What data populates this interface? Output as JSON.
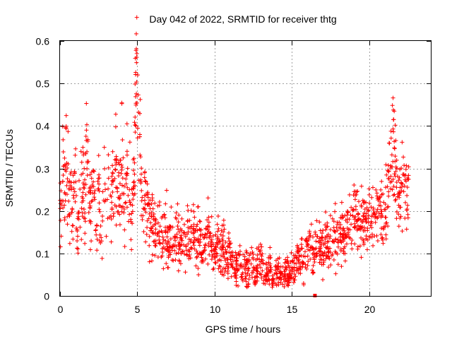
{
  "chart_data": {
    "type": "scatter",
    "title": "Day 042 of 2022, SRMTID for receiver thtg",
    "xlabel": "GPS time / hours",
    "ylabel": "SRMTID / TECUs",
    "xlim": [
      0,
      24
    ],
    "ylim": [
      0,
      0.6
    ],
    "xticks": [
      0,
      5,
      10,
      15,
      20
    ],
    "yticks": [
      0,
      0.1,
      0.2,
      0.3,
      0.4,
      0.5,
      0.6
    ],
    "xtick_labels": [
      "0",
      "5",
      "10",
      "15",
      "20"
    ],
    "ytick_labels": [
      "0",
      "0.1",
      "0.2",
      "0.3",
      "0.4",
      "0.5",
      "0.6"
    ],
    "grid": true,
    "marker": "+",
    "color": "#ff0000",
    "series": [
      {
        "name": "SRMTID",
        "x": [
          0.0,
          0.2,
          0.3,
          0.4,
          0.5,
          0.6,
          0.7,
          0.8,
          0.9,
          1.0,
          1.1,
          1.2,
          1.3,
          1.4,
          1.5,
          1.6,
          1.7,
          1.8,
          1.9,
          2.0,
          2.1,
          2.2,
          2.3,
          2.4,
          2.5,
          2.6,
          2.7,
          2.8,
          2.9,
          3.0,
          3.1,
          3.2,
          3.3,
          3.4,
          3.5,
          3.6,
          3.7,
          3.8,
          3.9,
          4.0,
          4.1,
          4.2,
          4.3,
          4.4,
          4.5,
          4.6,
          4.7,
          4.8,
          4.9,
          5.0,
          5.05,
          5.1,
          5.2,
          5.3,
          5.4,
          5.5,
          5.6,
          5.7,
          5.8,
          5.9,
          6.0,
          6.2,
          6.4,
          6.6,
          6.8,
          7.0,
          7.2,
          7.4,
          7.6,
          7.8,
          8.0,
          8.2,
          8.4,
          8.6,
          8.8,
          9.0,
          9.2,
          9.4,
          9.6,
          9.8,
          10.0,
          10.2,
          10.4,
          10.6,
          10.8,
          11.0,
          11.2,
          11.4,
          11.6,
          11.8,
          12.0,
          12.2,
          12.4,
          12.6,
          12.8,
          13.0,
          13.2,
          13.4,
          13.6,
          13.8,
          14.0,
          14.2,
          14.4,
          14.6,
          14.8,
          15.0,
          15.2,
          15.4,
          15.6,
          15.8,
          16.0,
          16.2,
          16.4,
          16.6,
          16.8,
          17.0,
          17.2,
          17.4,
          17.6,
          17.8,
          18.0,
          18.2,
          18.4,
          18.6,
          18.8,
          19.0,
          19.2,
          19.4,
          19.6,
          19.8,
          20.0,
          20.2,
          20.4,
          20.6,
          20.8,
          21.0,
          21.2,
          21.4,
          21.6,
          21.8,
          22.0,
          22.2,
          22.4,
          22.6
        ],
        "y": [
          0.22,
          0.3,
          0.25,
          0.35,
          0.28,
          0.2,
          0.26,
          0.17,
          0.24,
          0.3,
          0.12,
          0.19,
          0.27,
          0.22,
          0.33,
          0.2,
          0.38,
          0.29,
          0.24,
          0.17,
          0.31,
          0.26,
          0.2,
          0.14,
          0.28,
          0.22,
          0.09,
          0.25,
          0.3,
          0.19,
          0.27,
          0.22,
          0.16,
          0.3,
          0.25,
          0.36,
          0.2,
          0.28,
          0.24,
          0.32,
          0.26,
          0.18,
          0.3,
          0.22,
          0.27,
          0.16,
          0.24,
          0.31,
          0.48,
          0.5,
          0.42,
          0.37,
          0.3,
          0.24,
          0.2,
          0.27,
          0.18,
          0.23,
          0.16,
          0.21,
          0.17,
          0.14,
          0.16,
          0.12,
          0.18,
          0.13,
          0.15,
          0.11,
          0.16,
          0.14,
          0.12,
          0.15,
          0.13,
          0.17,
          0.12,
          0.14,
          0.11,
          0.13,
          0.15,
          0.12,
          0.1,
          0.13,
          0.09,
          0.11,
          0.08,
          0.1,
          0.07,
          0.06,
          0.08,
          0.05,
          0.07,
          0.06,
          0.09,
          0.05,
          0.07,
          0.08,
          0.06,
          0.05,
          0.07,
          0.04,
          0.06,
          0.05,
          0.04,
          0.06,
          0.05,
          0.07,
          0.06,
          0.09,
          0.1,
          0.08,
          0.11,
          0.12,
          0.09,
          0.13,
          0.11,
          0.1,
          0.14,
          0.12,
          0.11,
          0.15,
          0.13,
          0.16,
          0.14,
          0.18,
          0.15,
          0.17,
          0.19,
          0.15,
          0.18,
          0.16,
          0.2,
          0.17,
          0.19,
          0.22,
          0.18,
          0.21,
          0.26,
          0.3,
          0.34,
          0.28,
          0.24,
          0.27,
          0.22,
          0.25
        ],
        "outliers": [
          [
            16.5,
            0.0
          ]
        ]
      }
    ]
  }
}
